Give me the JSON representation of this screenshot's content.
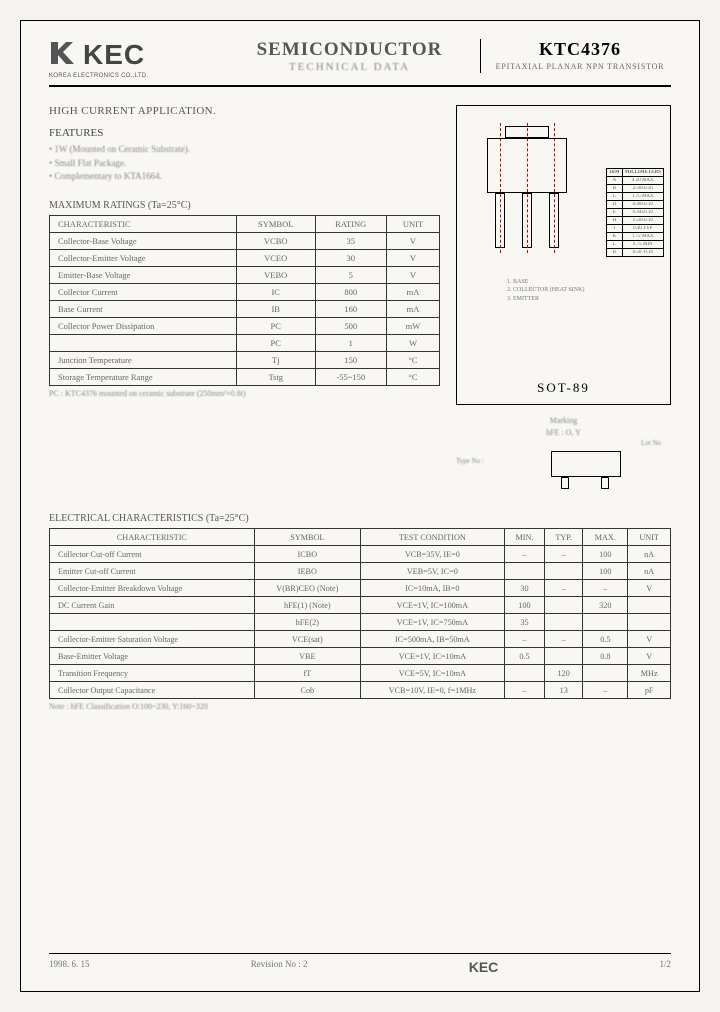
{
  "header": {
    "company_logo_text": "KEC",
    "company_subtext": "KOREA ELECTRONICS CO.,LTD.",
    "title_main": "SEMICONDUCTOR",
    "title_sub": "TECHNICAL DATA",
    "part_number": "KTC4376",
    "part_desc": "EPITAXIAL PLANAR NPN TRANSISTOR"
  },
  "application_heading": "HIGH CURRENT APPLICATION.",
  "features_heading": "FEATURES",
  "features": [
    "1W (Mounted on Ceramic Substrate).",
    "Small Flat Package.",
    "Complementary to KTA1664."
  ],
  "ratings": {
    "heading": "MAXIMUM RATINGS (Ta=25°C)",
    "columns": [
      "CHARACTERISTIC",
      "SYMBOL",
      "RATING",
      "UNIT"
    ],
    "rows": [
      [
        "Collector-Base Voltage",
        "VCBO",
        "35",
        "V"
      ],
      [
        "Collector-Emitter Voltage",
        "VCEO",
        "30",
        "V"
      ],
      [
        "Emitter-Base Voltage",
        "VEBO",
        "5",
        "V"
      ],
      [
        "Collector Current",
        "IC",
        "800",
        "mA"
      ],
      [
        "Base Current",
        "IB",
        "160",
        "mA"
      ],
      [
        "Collector Power Dissipation",
        "PC",
        "500",
        "mW"
      ],
      [
        "",
        "PC",
        "1",
        "W"
      ],
      [
        "Junction Temperature",
        "Tj",
        "150",
        "°C"
      ],
      [
        "Storage Temperature Range",
        "Tstg",
        "-55~150",
        "°C"
      ]
    ],
    "note": "PC : KTC4376 mounted on ceramic substrate (250mm²×0.8t)"
  },
  "package": {
    "label": "SOT-89",
    "dim_header": [
      "DIM",
      "MILLIMETERS"
    ],
    "dims": [
      [
        "A",
        "4.50 MAX"
      ],
      [
        "B",
        "2.50±0.20"
      ],
      [
        "C",
        "1.75 MAX"
      ],
      [
        "D",
        "0.40±0.10"
      ],
      [
        "E",
        "0.44±0.10"
      ],
      [
        "H",
        "1.50±0.10"
      ],
      [
        "J",
        "0.40 TYP"
      ],
      [
        "K",
        "1.72 MAX"
      ],
      [
        "L",
        "0.75 MIN"
      ],
      [
        "R",
        "0.50 -0.10"
      ]
    ],
    "pins": [
      "1. BASE",
      "2. COLLECTOR (HEAT SINK)",
      "3. EMITTER"
    ],
    "marking_title": "Marking",
    "marking_l1": "hFE : O, Y",
    "marking_l2": "Lot No",
    "marking_l3": "Type No : "
  },
  "electrical": {
    "heading": "ELECTRICAL CHARACTERISTICS (Ta=25°C)",
    "columns": [
      "CHARACTERISTIC",
      "SYMBOL",
      "TEST CONDITION",
      "MIN.",
      "TYP.",
      "MAX.",
      "UNIT"
    ],
    "rows": [
      [
        "Collector Cut-off Current",
        "ICBO",
        "VCB=35V, IE=0",
        "–",
        "–",
        "100",
        "nA"
      ],
      [
        "Emitter Cut-off Current",
        "IEBO",
        "VEB=5V, IC=0",
        "",
        "",
        "100",
        "nA"
      ],
      [
        "Collector-Emitter Breakdown Voltage",
        "V(BR)CEO (Note)",
        "IC=10mA, IB=0",
        "30",
        "–",
        "–",
        "V"
      ],
      [
        "DC Current Gain",
        "hFE(1) (Note)",
        "VCE=1V, IC=100mA",
        "100",
        "",
        "320",
        ""
      ],
      [
        "",
        "hFE(2)",
        "VCE=1V, IC=750mA",
        "35",
        "",
        "",
        ""
      ],
      [
        "Collector-Emitter Saturation Voltage",
        "VCE(sat)",
        "IC=500mA, IB=50mA",
        "–",
        "–",
        "0.5",
        "V"
      ],
      [
        "Base-Emitter Voltage",
        "VBE",
        "VCE=1V, IC=10mA",
        "0.5",
        "",
        "0.8",
        "V"
      ],
      [
        "Transition Frequency",
        "fT",
        "VCE=5V, IC=10mA",
        "",
        "120",
        "",
        "MHz"
      ],
      [
        "Collector Output Capacitance",
        "Cob",
        "VCB=10V, IE=0, f=1MHz",
        "–",
        "13",
        "–",
        "pF"
      ]
    ],
    "note": "Note : hFE Classification    O:100~230,   Y:160~320"
  },
  "footer": {
    "date": "1998. 6. 15",
    "rev": "Revision No : 2",
    "logo": "KEC",
    "page": "1/2"
  }
}
